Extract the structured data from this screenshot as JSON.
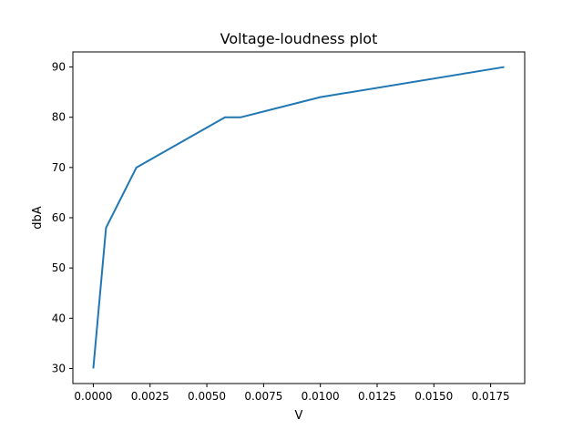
{
  "chart_data": {
    "type": "line",
    "title": "Voltage-loudness plot",
    "xlabel": "V",
    "ylabel": "dbA",
    "xlim": [
      -0.0009,
      0.019
    ],
    "ylim": [
      27,
      93
    ],
    "grid": false,
    "xticks": [
      0.0,
      0.0025,
      0.005,
      0.0075,
      0.01,
      0.0125,
      0.015,
      0.0175
    ],
    "xtick_labels": [
      "0.0000",
      "0.0025",
      "0.0050",
      "0.0075",
      "0.0100",
      "0.0125",
      "0.0150",
      "0.0175"
    ],
    "yticks": [
      30,
      40,
      50,
      60,
      70,
      80,
      90
    ],
    "ytick_labels": [
      "30",
      "40",
      "50",
      "60",
      "70",
      "80",
      "90"
    ],
    "series": [
      {
        "color": "#1f77b4",
        "x": [
          0.0,
          0.00056,
          0.0019,
          0.0058,
          0.0065,
          0.01,
          0.0181
        ],
        "y": [
          30,
          58,
          70,
          80,
          80,
          84,
          90
        ]
      }
    ]
  }
}
